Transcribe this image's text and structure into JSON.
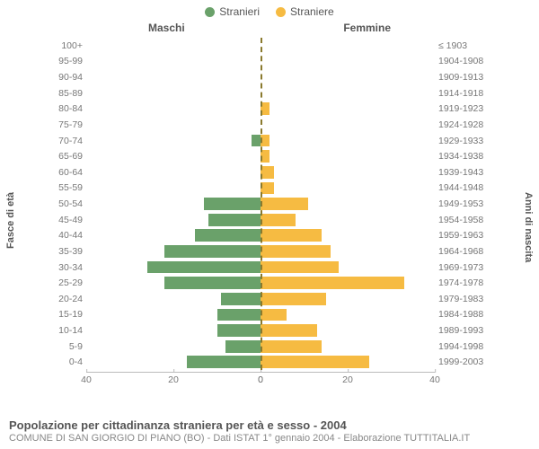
{
  "legend": {
    "male": {
      "label": "Stranieri",
      "color": "#6aa16a"
    },
    "female": {
      "label": "Straniere",
      "color": "#f6bb42"
    }
  },
  "col_titles": {
    "left": "Maschi",
    "right": "Femmine"
  },
  "y_titles": {
    "left": "Fasce di età",
    "right": "Anni di nascita"
  },
  "chart": {
    "type": "population-pyramid",
    "x_max": 40,
    "x_ticks": [
      0,
      20,
      40
    ],
    "background": "#ffffff",
    "bar_colors": {
      "male": "#6aa16a",
      "female": "#f6bb42"
    },
    "centerline_color": "#8a7a2e",
    "groups": [
      {
        "age": "100+",
        "birth": "≤ 1903",
        "m": 0,
        "f": 0
      },
      {
        "age": "95-99",
        "birth": "1904-1908",
        "m": 0,
        "f": 0
      },
      {
        "age": "90-94",
        "birth": "1909-1913",
        "m": 0,
        "f": 0
      },
      {
        "age": "85-89",
        "birth": "1914-1918",
        "m": 0,
        "f": 0
      },
      {
        "age": "80-84",
        "birth": "1919-1923",
        "m": 0,
        "f": 2
      },
      {
        "age": "75-79",
        "birth": "1924-1928",
        "m": 0,
        "f": 0
      },
      {
        "age": "70-74",
        "birth": "1929-1933",
        "m": 2,
        "f": 2
      },
      {
        "age": "65-69",
        "birth": "1934-1938",
        "m": 0,
        "f": 2
      },
      {
        "age": "60-64",
        "birth": "1939-1943",
        "m": 0,
        "f": 3
      },
      {
        "age": "55-59",
        "birth": "1944-1948",
        "m": 0,
        "f": 3
      },
      {
        "age": "50-54",
        "birth": "1949-1953",
        "m": 13,
        "f": 11
      },
      {
        "age": "45-49",
        "birth": "1954-1958",
        "m": 12,
        "f": 8
      },
      {
        "age": "40-44",
        "birth": "1959-1963",
        "m": 15,
        "f": 14
      },
      {
        "age": "35-39",
        "birth": "1964-1968",
        "m": 22,
        "f": 16
      },
      {
        "age": "30-34",
        "birth": "1969-1973",
        "m": 26,
        "f": 18
      },
      {
        "age": "25-29",
        "birth": "1974-1978",
        "m": 22,
        "f": 33
      },
      {
        "age": "20-24",
        "birth": "1979-1983",
        "m": 9,
        "f": 15
      },
      {
        "age": "15-19",
        "birth": "1984-1988",
        "m": 10,
        "f": 6
      },
      {
        "age": "10-14",
        "birth": "1989-1993",
        "m": 10,
        "f": 13
      },
      {
        "age": "5-9",
        "birth": "1994-1998",
        "m": 8,
        "f": 14
      },
      {
        "age": "0-4",
        "birth": "1999-2003",
        "m": 17,
        "f": 25
      }
    ]
  },
  "footer": {
    "title": "Popolazione per cittadinanza straniera per età e sesso - 2004",
    "subtitle": "COMUNE DI SAN GIORGIO DI PIANO (BO) - Dati ISTAT 1° gennaio 2004 - Elaborazione TUTTITALIA.IT"
  }
}
